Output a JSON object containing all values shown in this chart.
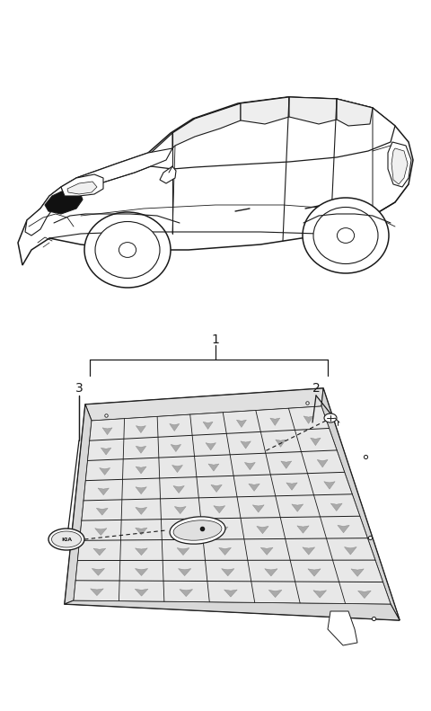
{
  "bg_color": "#ffffff",
  "line_color": "#1a1a1a",
  "fig_width": 4.8,
  "fig_height": 7.91,
  "dpi": 100,
  "label_1": "1",
  "label_2": "2",
  "label_3": "3",
  "lw_main": 1.0,
  "lw_thin": 0.6,
  "car_color": "#ffffff",
  "grille_color": "#f0f0f0",
  "black_fill": "#111111"
}
